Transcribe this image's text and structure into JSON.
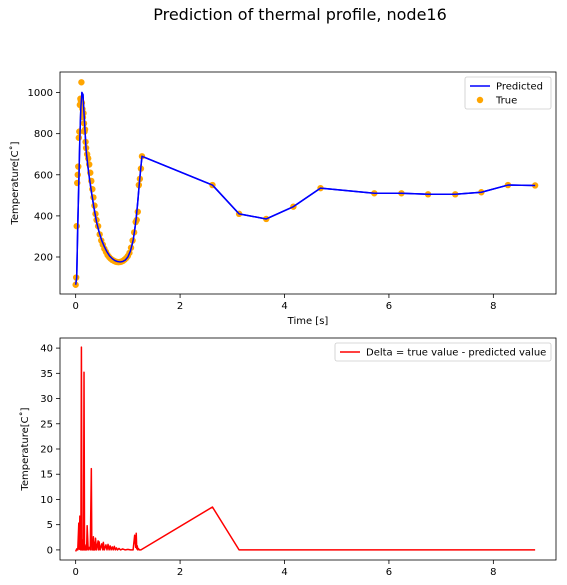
{
  "figure": {
    "title": "Prediction of thermal profile, node16"
  },
  "chart_data": [
    {
      "type": "line",
      "xlabel": "Time [s]",
      "ylabel": "Temperature[C$^\\circ$]",
      "ylabel_display": "Temperature[C˚]",
      "xlim": [
        -0.3,
        9.2
      ],
      "ylim": [
        20,
        1100
      ],
      "xticks": [
        0,
        2,
        4,
        6,
        8
      ],
      "yticks": [
        200,
        400,
        600,
        800,
        1000
      ],
      "legend": {
        "position": "top-right",
        "entries": [
          "Predicted",
          "True"
        ]
      },
      "grid": false,
      "series": [
        {
          "name": "Predicted",
          "kind": "line",
          "color": "#0000ff",
          "x": [
            0.0,
            0.02,
            0.04,
            0.06,
            0.08,
            0.1,
            0.12,
            0.14,
            0.16,
            0.18,
            0.2,
            0.23,
            0.26,
            0.3,
            0.35,
            0.4,
            0.45,
            0.5,
            0.55,
            0.6,
            0.65,
            0.7,
            0.75,
            0.8,
            0.85,
            0.9,
            0.95,
            1.0,
            1.05,
            1.1,
            1.13,
            1.16,
            1.19,
            1.22,
            1.25,
            1.27,
            2.62,
            3.13,
            3.65,
            4.17,
            4.69,
            5.72,
            6.24,
            6.75,
            7.27,
            7.77,
            8.28,
            8.8
          ],
          "y": [
            65,
            100,
            350,
            560,
            780,
            930,
            1000,
            990,
            900,
            810,
            720,
            650,
            590,
            520,
            440,
            370,
            320,
            280,
            250,
            225,
            205,
            192,
            183,
            178,
            176,
            178,
            185,
            200,
            230,
            280,
            330,
            390,
            470,
            560,
            640,
            690,
            550,
            410,
            385,
            445,
            535,
            510,
            510,
            505,
            505,
            515,
            550,
            548
          ]
        },
        {
          "name": "True",
          "kind": "scatter",
          "color": "#ffa500",
          "x": [
            0.0,
            0.01,
            0.02,
            0.03,
            0.04,
            0.05,
            0.06,
            0.07,
            0.08,
            0.09,
            0.1,
            0.11,
            0.12,
            0.13,
            0.14,
            0.15,
            0.16,
            0.17,
            0.18,
            0.19,
            0.2,
            0.22,
            0.24,
            0.26,
            0.28,
            0.3,
            0.32,
            0.34,
            0.36,
            0.38,
            0.4,
            0.43,
            0.46,
            0.49,
            0.52,
            0.55,
            0.58,
            0.61,
            0.64,
            0.67,
            0.7,
            0.73,
            0.76,
            0.79,
            0.82,
            0.85,
            0.88,
            0.91,
            0.94,
            0.97,
            1.0,
            1.03,
            1.06,
            1.09,
            1.12,
            1.15,
            1.17,
            1.19,
            1.21,
            1.23,
            1.25,
            1.27,
            2.62,
            3.13,
            3.65,
            4.17,
            4.69,
            5.72,
            6.24,
            6.75,
            7.27,
            7.77,
            8.28,
            8.8
          ],
          "y": [
            65,
            100,
            350,
            560,
            600,
            640,
            780,
            810,
            940,
            970,
            960,
            1050,
            950,
            920,
            880,
            900,
            850,
            810,
            820,
            760,
            730,
            700,
            680,
            650,
            610,
            570,
            530,
            490,
            450,
            410,
            380,
            350,
            310,
            280,
            260,
            240,
            225,
            210,
            200,
            192,
            186,
            182,
            178,
            176,
            175,
            176,
            178,
            182,
            188,
            195,
            205,
            220,
            245,
            280,
            320,
            370,
            380,
            420,
            550,
            580,
            630,
            690,
            550,
            410,
            385,
            445,
            535,
            510,
            510,
            505,
            505,
            515,
            550,
            548
          ]
        }
      ]
    },
    {
      "type": "line",
      "xlabel": "",
      "ylabel": "Temperature[C$^\\circ$]",
      "ylabel_display": "Temperature[C˚]",
      "xlim": [
        -0.3,
        9.2
      ],
      "ylim": [
        -2.0,
        42.0
      ],
      "xticks": [
        0,
        2,
        4,
        6,
        8
      ],
      "yticks": [
        0,
        5,
        10,
        15,
        20,
        25,
        30,
        35,
        40
      ],
      "legend": {
        "position": "top-right",
        "entries": [
          "Delta = true value - predicted value"
        ]
      },
      "grid": false,
      "series": [
        {
          "name": "Delta = true value - predicted value",
          "kind": "line",
          "color": "#ff0000",
          "x": [
            0.0,
            0.02,
            0.04,
            0.06,
            0.07,
            0.08,
            0.09,
            0.1,
            0.11,
            0.12,
            0.125,
            0.13,
            0.14,
            0.15,
            0.16,
            0.17,
            0.18,
            0.19,
            0.2,
            0.21,
            0.22,
            0.24,
            0.26,
            0.28,
            0.3,
            0.31,
            0.32,
            0.33,
            0.34,
            0.35,
            0.36,
            0.37,
            0.38,
            0.4,
            0.43,
            0.44,
            0.45,
            0.47,
            0.5,
            0.52,
            0.53,
            0.55,
            0.58,
            0.6,
            0.62,
            0.64,
            0.66,
            0.68,
            0.7,
            0.72,
            0.74,
            0.76,
            0.78,
            0.8,
            0.83,
            0.86,
            0.9,
            0.95,
            1.0,
            1.05,
            1.1,
            1.13,
            1.15,
            1.16,
            1.17,
            1.18,
            1.19,
            1.2,
            1.22,
            1.25,
            2.62,
            3.13,
            3.65,
            4.17,
            4.69,
            5.72,
            6.24,
            6.75,
            7.27,
            7.77,
            8.28,
            8.8
          ],
          "y": [
            -0.3,
            0.2,
            0.0,
            5.3,
            0.1,
            6.7,
            0.2,
            0.0,
            40.2,
            0.1,
            0.0,
            0.3,
            2.0,
            0.0,
            35.2,
            0.0,
            1.0,
            0.0,
            0.3,
            0.0,
            4.8,
            0.0,
            0.5,
            0.0,
            16.1,
            0.0,
            0.5,
            0.0,
            2.6,
            0.0,
            1.5,
            0.0,
            2.3,
            0.0,
            1.8,
            0.0,
            1.6,
            0.0,
            1.2,
            0.0,
            1.5,
            0.0,
            1.0,
            0.0,
            1.1,
            0.0,
            0.8,
            0.0,
            0.6,
            0.0,
            0.7,
            0.0,
            0.4,
            0.0,
            0.3,
            0.0,
            0.2,
            0.0,
            0.1,
            0.0,
            0.0,
            2.9,
            0.5,
            3.3,
            0.2,
            0.8,
            0.0,
            0.3,
            0.0,
            0.0,
            8.5,
            0.0,
            0.0,
            0.0,
            0.0,
            0.0,
            0.0,
            0.0,
            0.0,
            0.0,
            0.0,
            0.0
          ]
        }
      ]
    }
  ]
}
